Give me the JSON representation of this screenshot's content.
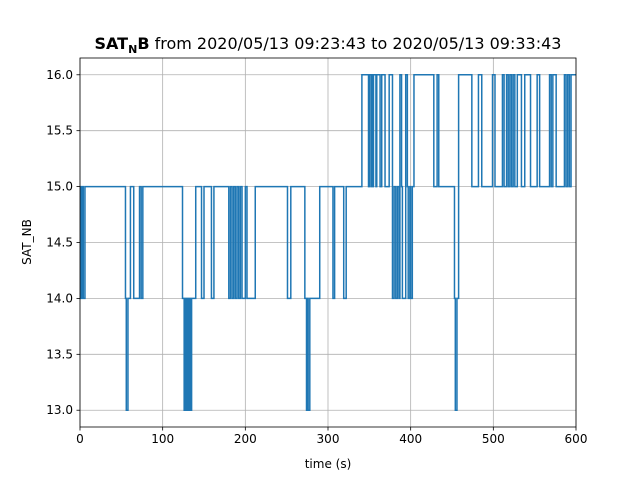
{
  "chart_data": {
    "type": "line",
    "title_bold": "SAT",
    "title_sub": "N",
    "title_bold_suffix": "B",
    "title_rest": " from 2020/05/13 09:23:43 to 2020/05/13 09:33:43",
    "xlabel": "time (s)",
    "ylabel": "SAT_NB",
    "xlim": [
      0,
      600
    ],
    "ylim": [
      12.85,
      16.15
    ],
    "xticks": [
      0,
      100,
      200,
      300,
      400,
      500,
      600
    ],
    "xtick_labels": [
      "0",
      "100",
      "200",
      "300",
      "400",
      "500",
      "600"
    ],
    "yticks": [
      13.0,
      13.5,
      14.0,
      14.5,
      15.0,
      15.5,
      16.0
    ],
    "ytick_labels": [
      "13.0",
      "13.5",
      "14.0",
      "14.5",
      "15.0",
      "15.5",
      "16.0"
    ],
    "grid": true,
    "series": [
      {
        "color": "#1f77b4",
        "step": "post",
        "x": [
          0,
          1,
          2,
          3,
          4,
          6,
          53,
          55,
          56,
          58,
          61,
          65,
          72,
          74,
          76,
          86,
          124,
          126,
          127,
          128,
          129,
          130,
          131,
          132,
          133,
          134,
          135,
          136,
          140,
          147,
          150,
          159,
          162,
          180,
          182,
          184,
          186,
          188,
          190,
          192,
          194,
          196,
          200,
          202,
          212,
          251,
          255,
          272,
          274,
          275,
          276,
          278,
          290,
          306,
          308,
          319,
          322,
          341,
          349,
          350,
          352,
          353,
          354,
          355,
          358,
          359,
          363,
          365,
          369,
          374,
          378,
          380,
          382,
          384,
          386,
          387,
          389,
          390,
          394,
          396,
          397,
          399,
          400,
          402,
          404,
          428,
          432,
          434,
          453,
          454,
          456,
          458,
          474,
          482,
          486,
          499,
          502,
          511,
          513,
          516,
          518,
          520,
          522,
          524,
          526,
          529,
          534,
          538,
          545,
          553,
          556,
          568,
          570,
          572,
          576,
          586,
          588,
          590,
          592,
          594,
          600
        ],
        "y": [
          14,
          15,
          14,
          15,
          14,
          15,
          15,
          14,
          13,
          14,
          15,
          14,
          15,
          14,
          15,
          15,
          14,
          13,
          14,
          13,
          14,
          13,
          14,
          13,
          14,
          13,
          14,
          14,
          15,
          14,
          15,
          14,
          15,
          14,
          15,
          14,
          15,
          14,
          15,
          14,
          15,
          14,
          15,
          14,
          15,
          14,
          15,
          14,
          13,
          14,
          13,
          14,
          15,
          14,
          15,
          14,
          15,
          16,
          15,
          16,
          15,
          16,
          15,
          16,
          15,
          16,
          15,
          16,
          15,
          16,
          14,
          15,
          14,
          15,
          14,
          16,
          15,
          14,
          16,
          15,
          14,
          15,
          14,
          15,
          16,
          15,
          16,
          15,
          14,
          13,
          14,
          16,
          15,
          16,
          15,
          16,
          15,
          16,
          15,
          16,
          15,
          16,
          15,
          16,
          15,
          16,
          15,
          16,
          15,
          16,
          15,
          16,
          15,
          16,
          15,
          16,
          15,
          16,
          15,
          16,
          16
        ]
      }
    ]
  }
}
